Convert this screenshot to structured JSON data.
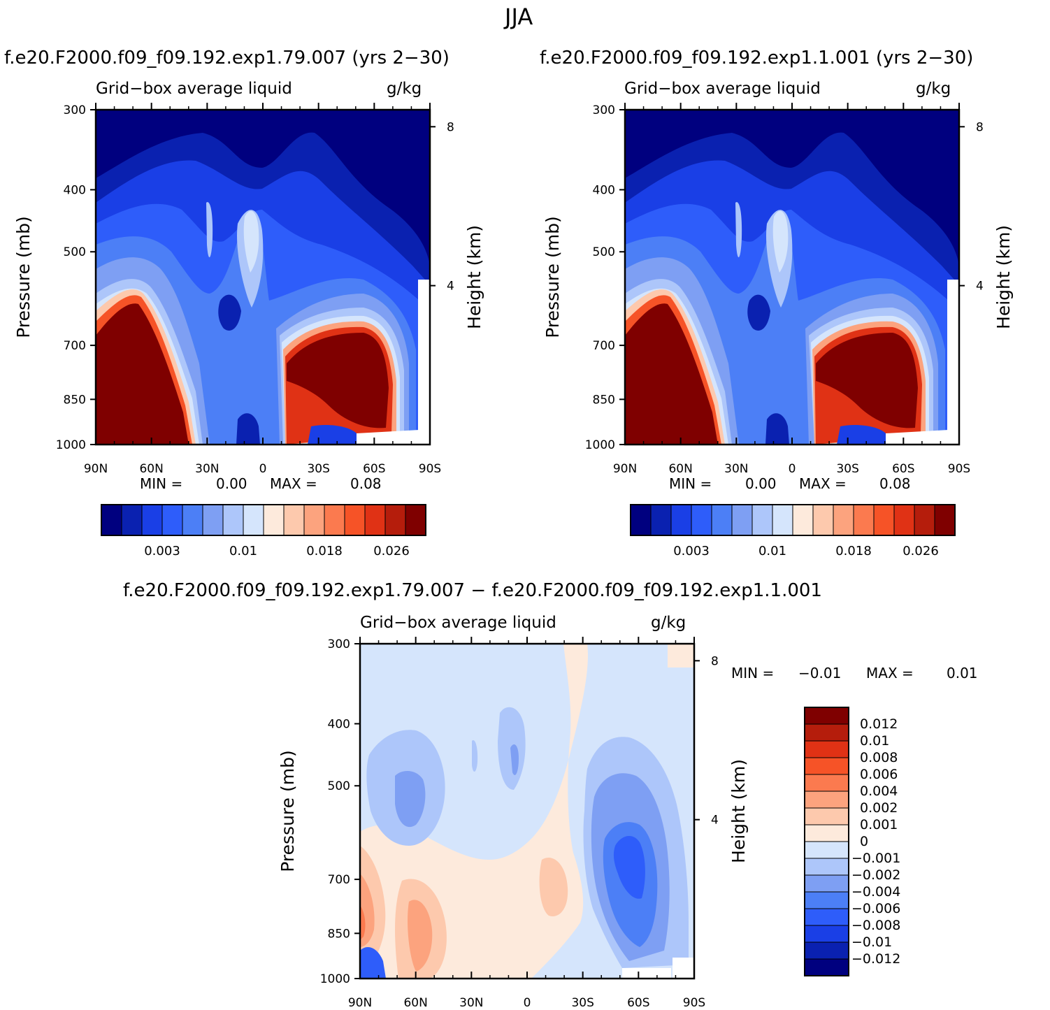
{
  "figure": {
    "title": "JJA",
    "diff_title": "f.e20.F2000.f09_f09.192.exp1.79.007 − f.e20.F2000.f09_f09.192.exp1.1.001"
  },
  "panels": [
    {
      "case_title": "f.e20.F2000.f09_f09.192.exp1.79.007 (yrs 2−30)",
      "var_title": "Grid−box average liquid",
      "units": "g/kg",
      "min_label": "MIN =",
      "min_value": "0.00",
      "max_label": "MAX =",
      "max_value": "0.08"
    },
    {
      "case_title": "f.e20.F2000.f09_f09.192.exp1.1.001 (yrs 2−30)",
      "var_title": "Grid−box average liquid",
      "units": "g/kg",
      "min_label": "MIN =",
      "min_value": "0.00",
      "max_label": "MAX =",
      "max_value": "0.08"
    },
    {
      "var_title": "Grid−box average liquid",
      "units": "g/kg",
      "min_label": "MIN =",
      "min_value": "−0.01",
      "max_label": "MAX =",
      "max_value": "0.01"
    }
  ],
  "axes": {
    "ylabel": "Pressure (mb)",
    "ylabel_right": "Height (km)",
    "pressure_ticks": [
      "300",
      "400",
      "500",
      "700",
      "850",
      "1000"
    ],
    "height_ticks": [
      "8",
      "4"
    ],
    "lat_ticks": [
      "90N",
      "60N",
      "30N",
      "0",
      "30S",
      "60S",
      "90S"
    ]
  },
  "colors": {
    "abs_levels": [
      "#00007f",
      "#0a21b0",
      "#1a3fe6",
      "#2e5dfa",
      "#4c7ff6",
      "#7e9ff3",
      "#adc6fa",
      "#d5e5fc",
      "#fdeadc",
      "#fdc9ad",
      "#fca37e",
      "#fb7a4f",
      "#f65327",
      "#e03215",
      "#b51d0c",
      "#7f0000"
    ],
    "abs_tick_labels": [
      "0.003",
      "0.01",
      "0.018",
      "0.026"
    ],
    "diff_levels": [
      "#00007f",
      "#0a21b0",
      "#1a3fe6",
      "#2e5dfa",
      "#4c7ff6",
      "#7e9ff3",
      "#adc6fa",
      "#d5e5fc",
      "#fdeadc",
      "#fdc9ad",
      "#fca37e",
      "#fb7a4f",
      "#f65327",
      "#e03215",
      "#b51d0c",
      "#7f0000"
    ],
    "diff_tick_labels": [
      "0.012",
      "0.01",
      "0.008",
      "0.006",
      "0.004",
      "0.002",
      "0.001",
      "0",
      "−0.001",
      "−0.002",
      "−0.004",
      "−0.006",
      "−0.008",
      "−0.01",
      "−0.012"
    ]
  },
  "chart_data": [
    {
      "type": "heatmap",
      "title": "f.e20.F2000.f09_f09.192.exp1.79.007 (yrs 2−30)",
      "subtitle": "Grid−box average liquid (g/kg)",
      "xlabel": "",
      "ylabel": "Pressure (mb)",
      "x_categories": [
        "90N",
        "60N",
        "30N",
        "0",
        "30S",
        "60S",
        "90S"
      ],
      "ylim": [
        1000,
        300
      ],
      "min": 0.0,
      "max": 0.08,
      "color_levels": [
        0.001,
        0.002,
        0.003,
        0.004,
        0.006,
        0.008,
        0.01,
        0.012,
        0.014,
        0.016,
        0.018,
        0.02,
        0.022,
        0.024,
        0.026
      ]
    },
    {
      "type": "heatmap",
      "title": "f.e20.F2000.f09_f09.192.exp1.1.001 (yrs 2−30)",
      "subtitle": "Grid−box average liquid (g/kg)",
      "xlabel": "",
      "ylabel": "Pressure (mb)",
      "x_categories": [
        "90N",
        "60N",
        "30N",
        "0",
        "30S",
        "60S",
        "90S"
      ],
      "ylim": [
        1000,
        300
      ],
      "min": 0.0,
      "max": 0.08,
      "color_levels": [
        0.001,
        0.002,
        0.003,
        0.004,
        0.006,
        0.008,
        0.01,
        0.012,
        0.014,
        0.016,
        0.018,
        0.02,
        0.022,
        0.024,
        0.026
      ]
    },
    {
      "type": "heatmap",
      "title": "f.e20.F2000.f09_f09.192.exp1.79.007 − f.e20.F2000.f09_f09.192.exp1.1.001",
      "subtitle": "Grid−box average liquid (g/kg)",
      "xlabel": "",
      "ylabel": "Pressure (mb)",
      "x_categories": [
        "90N",
        "60N",
        "30N",
        "0",
        "30S",
        "60S",
        "90S"
      ],
      "ylim": [
        1000,
        300
      ],
      "min": -0.01,
      "max": 0.01,
      "color_levels": [
        -0.012,
        -0.01,
        -0.008,
        -0.006,
        -0.004,
        -0.002,
        -0.001,
        0,
        0.001,
        0.002,
        0.004,
        0.006,
        0.008,
        0.01,
        0.012
      ]
    }
  ]
}
